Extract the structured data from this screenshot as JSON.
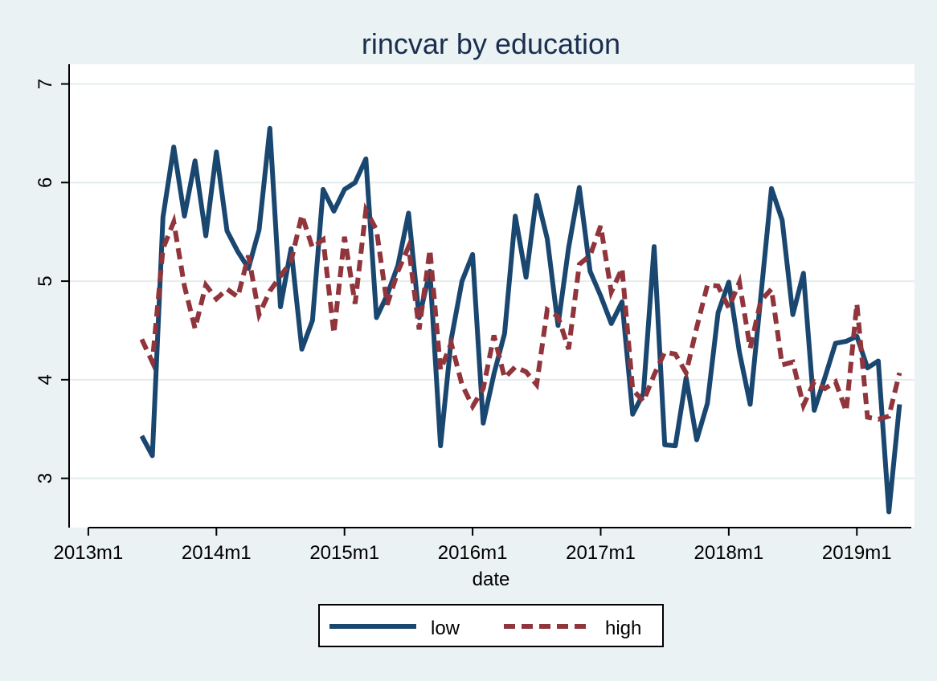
{
  "chart_data": {
    "type": "line",
    "title": "rincvar by education",
    "xlabel": "date",
    "ylabel": "",
    "x_ticks": [
      {
        "label": "2013m1",
        "value": 2013.0
      },
      {
        "label": "2014m1",
        "value": 2014.0
      },
      {
        "label": "2015m1",
        "value": 2015.0
      },
      {
        "label": "2016m1",
        "value": 2016.0
      },
      {
        "label": "2017m1",
        "value": 2017.0
      },
      {
        "label": "2018m1",
        "value": 2018.0
      },
      {
        "label": "2019m1",
        "value": 2019.0
      }
    ],
    "y_ticks": [
      3,
      4,
      5,
      6,
      7
    ],
    "xlim": [
      2012.85,
      2019.45
    ],
    "ylim": [
      2.5,
      7.2
    ],
    "grid": "horizontal",
    "legend_position": "bottom",
    "x": [
      2013.417,
      2013.5,
      2013.583,
      2013.667,
      2013.75,
      2013.833,
      2013.917,
      2014.0,
      2014.083,
      2014.167,
      2014.25,
      2014.333,
      2014.417,
      2014.5,
      2014.583,
      2014.667,
      2014.75,
      2014.833,
      2014.917,
      2015.0,
      2015.083,
      2015.167,
      2015.25,
      2015.333,
      2015.417,
      2015.5,
      2015.583,
      2015.667,
      2015.75,
      2015.833,
      2015.917,
      2016.0,
      2016.083,
      2016.167,
      2016.25,
      2016.333,
      2016.417,
      2016.5,
      2016.583,
      2016.667,
      2016.75,
      2016.833,
      2016.917,
      2017.0,
      2017.083,
      2017.167,
      2017.25,
      2017.333,
      2017.417,
      2017.5,
      2017.583,
      2017.667,
      2017.75,
      2017.833,
      2017.917,
      2018.0,
      2018.083,
      2018.167,
      2018.25,
      2018.333,
      2018.417,
      2018.5,
      2018.583,
      2018.667,
      2018.75,
      2018.833,
      2018.917,
      2019.0,
      2019.083,
      2019.167,
      2019.25,
      2019.333
    ],
    "series": [
      {
        "name": "low",
        "color": "#1a476f",
        "dash": "solid",
        "values": [
          3.43,
          3.23,
          5.65,
          6.36,
          5.66,
          6.22,
          5.46,
          6.31,
          5.51,
          5.3,
          5.13,
          5.52,
          6.55,
          4.74,
          5.33,
          4.31,
          4.6,
          5.93,
          5.71,
          5.93,
          6.0,
          6.24,
          4.63,
          4.86,
          5.16,
          5.69,
          4.63,
          5.1,
          3.33,
          4.41,
          5.0,
          5.27,
          3.56,
          4.06,
          4.47,
          5.66,
          5.04,
          5.87,
          5.43,
          4.55,
          5.34,
          5.95,
          5.1,
          4.85,
          4.57,
          4.79,
          3.65,
          3.86,
          5.35,
          3.34,
          3.33,
          4.02,
          3.39,
          3.76,
          4.68,
          4.99,
          4.28,
          3.75,
          4.84,
          5.94,
          5.62,
          4.66,
          5.08,
          3.69,
          4.02,
          4.37,
          4.39,
          4.44,
          4.12,
          4.19,
          2.66,
          3.75
        ]
      },
      {
        "name": "high",
        "color": "#90353b",
        "dash": "dashed",
        "values": [
          4.41,
          4.18,
          5.33,
          5.6,
          4.95,
          4.52,
          4.96,
          4.82,
          4.92,
          4.84,
          5.26,
          4.66,
          4.9,
          5.05,
          5.2,
          5.67,
          5.34,
          5.42,
          4.47,
          5.45,
          4.77,
          5.72,
          5.52,
          4.76,
          5.1,
          5.35,
          4.51,
          5.32,
          4.1,
          4.37,
          3.95,
          3.73,
          3.91,
          4.45,
          4.02,
          4.13,
          4.08,
          3.95,
          4.71,
          4.64,
          4.31,
          5.17,
          5.26,
          5.56,
          4.89,
          5.13,
          3.9,
          3.78,
          4.05,
          4.28,
          4.26,
          4.07,
          4.53,
          4.96,
          4.95,
          4.73,
          4.99,
          4.32,
          4.8,
          4.92,
          4.15,
          4.18,
          3.74,
          3.98,
          3.91,
          3.98,
          3.68,
          4.77,
          3.62,
          3.6,
          3.63,
          4.07
        ]
      }
    ]
  }
}
